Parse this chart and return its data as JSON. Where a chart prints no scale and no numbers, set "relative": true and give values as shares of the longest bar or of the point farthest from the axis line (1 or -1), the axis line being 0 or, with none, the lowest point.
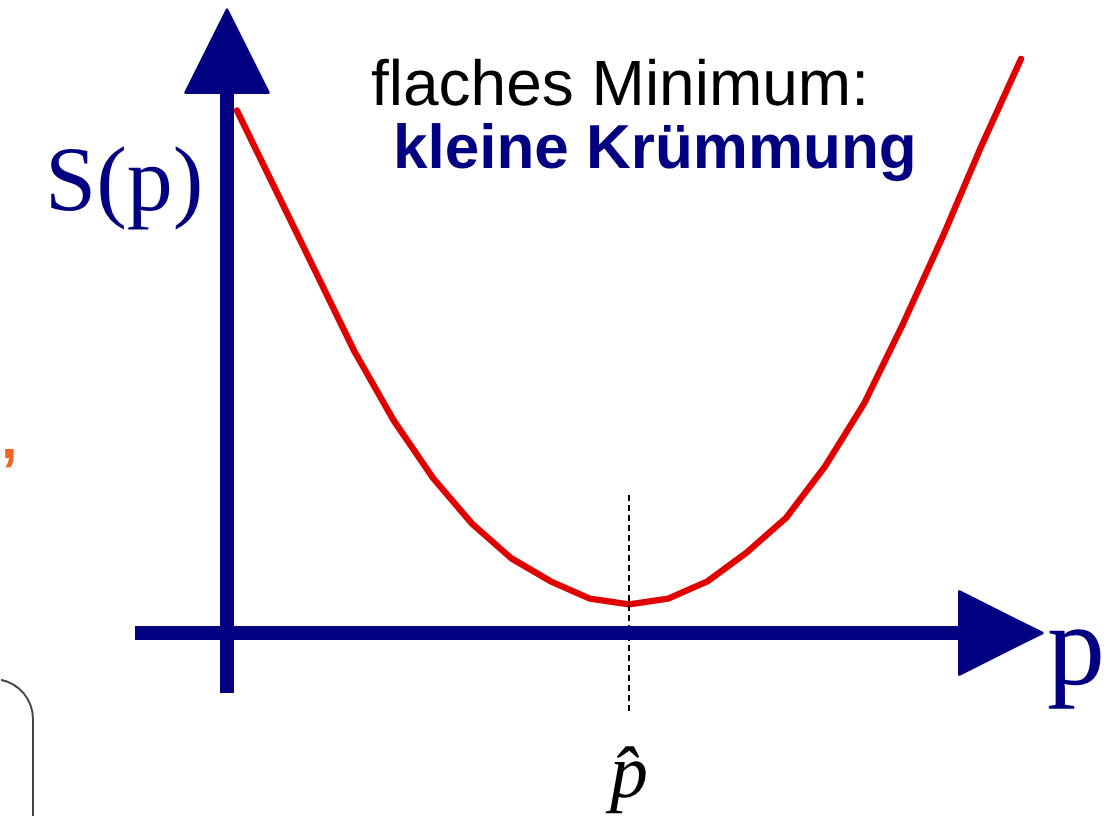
{
  "chart_data": {
    "type": "line",
    "relative": true,
    "categories": [
      null,
      null,
      null,
      null,
      null,
      null,
      null,
      null,
      null,
      null,
      null,
      null,
      null,
      null,
      null,
      null,
      null,
      null,
      null,
      null,
      null
    ],
    "series": [
      {
        "color": "#e00000",
        "values": [
          0.91,
          0.77,
          0.63,
          0.49,
          0.37,
          0.27,
          0.19,
          0.13,
          0.09,
          0.06,
          0.05,
          0.06,
          0.09,
          0.14,
          0.2,
          0.29,
          0.4,
          0.54,
          0.69,
          0.85,
          1
        ]
      }
    ],
    "xlabel": "p",
    "ylabel": "S(p)",
    "annotations": [
      "flaches  Minimum:",
      "kleine Krümmung",
      ",",
      "p̂"
    ],
    "line_style": "solid"
  }
}
